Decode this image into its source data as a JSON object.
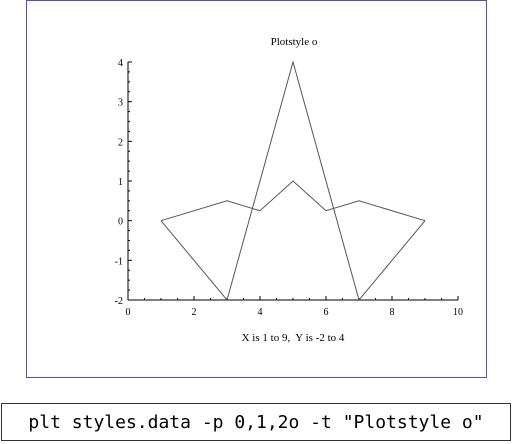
{
  "chart_data": {
    "type": "line",
    "title": "Plotstyle o",
    "xlabel": "X is 1 to 9,  Y is -2 to 4",
    "ylabel": "",
    "xlim": [
      0,
      10
    ],
    "ylim": [
      -2,
      4
    ],
    "xticks": [
      "0",
      "2",
      "4",
      "6",
      "8",
      "10"
    ],
    "yticks": [
      "-2",
      "-1",
      "0",
      "1",
      "2",
      "3",
      "4"
    ],
    "grid": false,
    "legend": "none",
    "series": [
      {
        "x": [
          1,
          3,
          4,
          5,
          6,
          7,
          9
        ],
        "y": [
          0,
          0.5,
          0.25,
          1,
          0.25,
          0.5,
          0
        ],
        "color": "#555555"
      },
      {
        "x": [
          1,
          3,
          5,
          7,
          9
        ],
        "y": [
          0,
          -2,
          4,
          -2,
          0
        ],
        "color": "#555555"
      }
    ]
  },
  "command": {
    "text": "plt styles.data -p 0,1,2o -t \"Plotstyle o\""
  },
  "colors": {
    "frame_border": "#5050c8",
    "axis": "#000000",
    "series": "#555555"
  }
}
